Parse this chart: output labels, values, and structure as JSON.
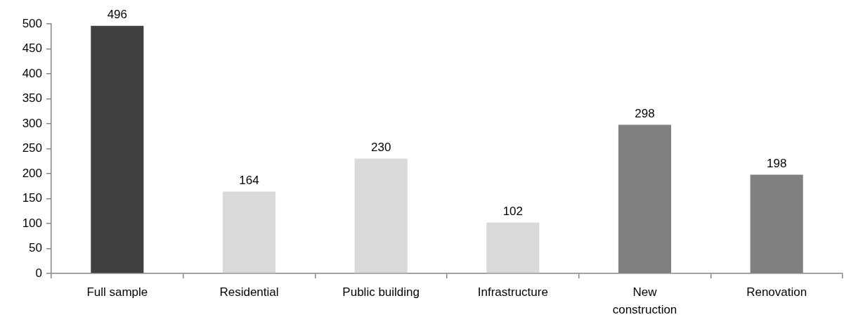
{
  "chart_data": {
    "type": "bar",
    "categories": [
      "Full sample",
      "Residential",
      "Public building",
      "Infrastructure",
      "New construction",
      "Renovation"
    ],
    "values": [
      496,
      164,
      230,
      102,
      298,
      198
    ],
    "colors": [
      "#404040",
      "#d9d9d9",
      "#d9d9d9",
      "#d9d9d9",
      "#808080",
      "#808080"
    ],
    "ylim": [
      0,
      500
    ],
    "yticks": [
      0,
      50,
      100,
      150,
      200,
      250,
      300,
      350,
      400,
      450,
      500
    ],
    "data_labels": true,
    "grid": false
  }
}
